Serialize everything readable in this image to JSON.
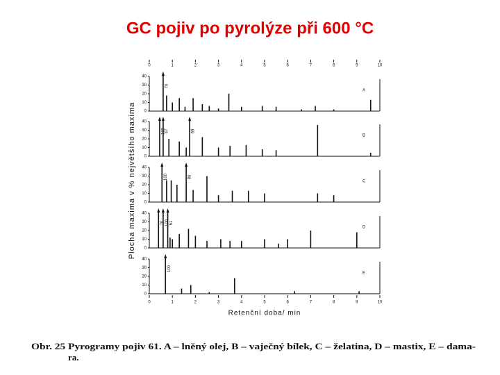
{
  "title": "GC pojiv po pyrolýze  při 600 °C",
  "ylabel": "Plocha maxima  v % největšího maxima",
  "caption": [
    "Obr. 25 Pyrogramy pojiv 61. A – lněný olej, B – vaječný bílek, C – želatina, D – mastix, E – dama-",
    "ra."
  ],
  "chart_data": [
    {
      "type": "bar",
      "label": "A",
      "xlim": [
        0,
        10
      ],
      "xticks": [
        0,
        1,
        2,
        3,
        4,
        5,
        6,
        7,
        8,
        9,
        10
      ],
      "ylim": [
        0,
        40
      ],
      "yticks": [
        0,
        10,
        20,
        30,
        40
      ],
      "x": [
        0.6,
        0.75,
        1.0,
        1.3,
        1.55,
        1.9,
        2.3,
        2.6,
        3.0,
        3.45,
        4.0,
        4.9,
        5.5,
        6.6,
        7.2,
        8.0,
        9.6
      ],
      "values": [
        70,
        18,
        10,
        15,
        5,
        15,
        8,
        6,
        3,
        20,
        5,
        6,
        5,
        2,
        6,
        2,
        13
      ],
      "value_labels": [
        "70",
        null,
        null,
        null,
        null,
        null,
        null,
        null,
        null,
        null,
        null,
        null,
        null,
        null,
        null,
        null,
        null
      ]
    },
    {
      "type": "bar",
      "label": "B",
      "xlim": [
        0,
        10
      ],
      "ylim": [
        0,
        40
      ],
      "yticks": [
        0,
        10,
        20,
        30,
        40
      ],
      "x": [
        0.45,
        0.6,
        0.85,
        1.3,
        1.6,
        1.75,
        2.3,
        3.0,
        3.5,
        4.2,
        4.9,
        5.5,
        7.3,
        9.6
      ],
      "values": [
        100,
        47,
        20,
        17,
        10,
        69,
        22,
        10,
        12,
        13,
        8,
        7,
        36,
        4
      ],
      "value_labels": [
        "100",
        "47",
        null,
        null,
        null,
        "69",
        null,
        null,
        null,
        null,
        null,
        null,
        null,
        null
      ]
    },
    {
      "type": "bar",
      "label": "C",
      "xlim": [
        0,
        10
      ],
      "ylim": [
        0,
        40
      ],
      "yticks": [
        0,
        10,
        20,
        30,
        40
      ],
      "x": [
        0.55,
        0.75,
        0.95,
        1.2,
        1.6,
        1.9,
        2.5,
        3.0,
        3.6,
        4.3,
        5.0,
        7.3,
        8.0
      ],
      "values": [
        100,
        25,
        25,
        20,
        80,
        14,
        30,
        8,
        13,
        13,
        10,
        10,
        8
      ],
      "value_labels": [
        "100",
        null,
        null,
        null,
        "80",
        null,
        null,
        null,
        null,
        null,
        null,
        null,
        null
      ]
    },
    {
      "type": "bar",
      "label": "D",
      "xlim": [
        0,
        10
      ],
      "ylim": [
        0,
        40
      ],
      "yticks": [
        0,
        10,
        20,
        30,
        40
      ],
      "x": [
        0.4,
        0.6,
        0.8,
        0.9,
        1.0,
        1.3,
        1.7,
        2.0,
        2.5,
        3.1,
        3.5,
        4.0,
        5.0,
        5.6,
        6.0,
        7.0,
        9.0
      ],
      "values": [
        70,
        100,
        51,
        12,
        10,
        16,
        22,
        14,
        8,
        10,
        8,
        8,
        10,
        5,
        10,
        20,
        18
      ],
      "value_labels": [
        "70",
        "100",
        "51",
        null,
        null,
        null,
        null,
        null,
        null,
        null,
        null,
        null,
        null,
        null,
        null,
        null,
        null
      ]
    },
    {
      "type": "bar",
      "label": "E",
      "xlim": [
        0,
        10
      ],
      "xticks": [
        0,
        1,
        2,
        3,
        4,
        5,
        6,
        7,
        8,
        9,
        10
      ],
      "xlabel": "Retenční  doba/ min",
      "ylim": [
        0,
        40
      ],
      "yticks": [
        0,
        10,
        20,
        30,
        40
      ],
      "x": [
        0.7,
        1.4,
        1.8,
        2.6,
        3.7,
        6.3,
        9.1
      ],
      "values": [
        100,
        6,
        10,
        2,
        18,
        3,
        3
      ],
      "value_labels": [
        "100",
        null,
        null,
        null,
        null,
        null,
        null
      ]
    }
  ]
}
